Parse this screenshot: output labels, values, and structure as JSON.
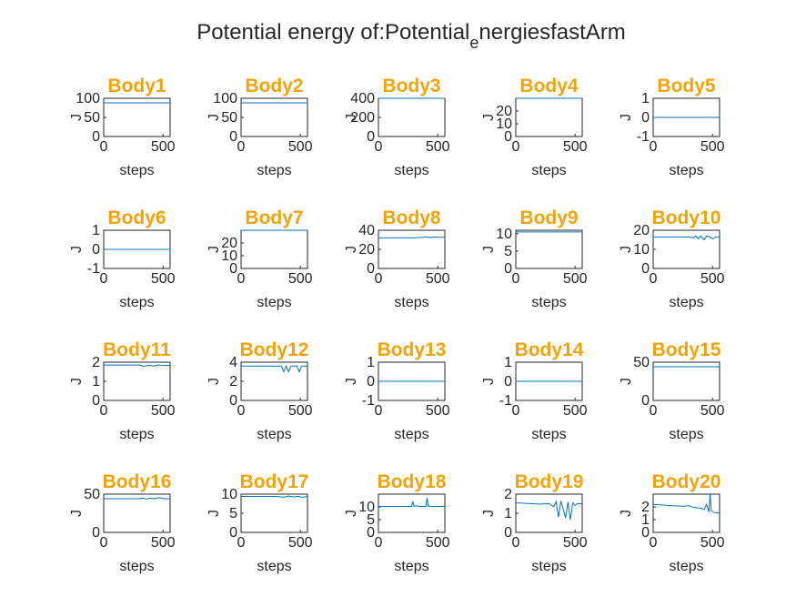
{
  "figure": {
    "title_main": "Potential energy of:Potential",
    "title_sub": "e",
    "title_tail": "nergiesfastArm",
    "title_color": "#f0a30a",
    "line_color": "#0072bd"
  },
  "chart_data": [
    {
      "type": "line",
      "title": "Body1",
      "xlabel": "steps",
      "ylabel": "J",
      "xlim": [
        0,
        560
      ],
      "ylim": [
        0,
        100
      ],
      "yticks": [
        0,
        50,
        100
      ],
      "xticks": [
        0,
        500
      ],
      "x": [
        0,
        560
      ],
      "y": [
        88,
        88
      ]
    },
    {
      "type": "line",
      "title": "Body2",
      "xlabel": "steps",
      "ylabel": "J",
      "xlim": [
        0,
        560
      ],
      "ylim": [
        0,
        100
      ],
      "yticks": [
        0,
        50,
        100
      ],
      "xticks": [
        0,
        500
      ],
      "x": [
        0,
        560
      ],
      "y": [
        88,
        88
      ]
    },
    {
      "type": "line",
      "title": "Body3",
      "xlabel": "steps",
      "ylabel": "J",
      "xlim": [
        0,
        560
      ],
      "ylim": [
        0,
        400
      ],
      "yticks": [
        0,
        200,
        400
      ],
      "xticks": [
        0,
        500
      ],
      "x": [
        0,
        560
      ],
      "y": [
        400,
        400
      ]
    },
    {
      "type": "line",
      "title": "Body4",
      "xlabel": "steps",
      "ylabel": "J",
      "xlim": [
        0,
        560
      ],
      "ylim": [
        0,
        30
      ],
      "yticks": [
        0,
        10,
        20
      ],
      "xticks": [
        0,
        500
      ],
      "x": [
        0,
        560
      ],
      "y": [
        30,
        30
      ]
    },
    {
      "type": "line",
      "title": "Body5",
      "xlabel": "steps",
      "ylabel": "J",
      "xlim": [
        0,
        560
      ],
      "ylim": [
        -1,
        1
      ],
      "yticks": [
        -1,
        0,
        1
      ],
      "xticks": [
        0,
        500
      ],
      "x": [
        0,
        560
      ],
      "y": [
        0,
        0
      ]
    },
    {
      "type": "line",
      "title": "Body6",
      "xlabel": "steps",
      "ylabel": "J",
      "xlim": [
        0,
        560
      ],
      "ylim": [
        -1,
        1
      ],
      "yticks": [
        -1,
        0,
        1
      ],
      "xticks": [
        0,
        500
      ],
      "x": [
        0,
        560
      ],
      "y": [
        0,
        0
      ]
    },
    {
      "type": "line",
      "title": "Body7",
      "xlabel": "steps",
      "ylabel": "J",
      "xlim": [
        0,
        560
      ],
      "ylim": [
        0,
        30
      ],
      "yticks": [
        0,
        10,
        20
      ],
      "xticks": [
        0,
        500
      ],
      "x": [
        0,
        560
      ],
      "y": [
        30,
        30
      ]
    },
    {
      "type": "line",
      "title": "Body8",
      "xlabel": "steps",
      "ylabel": "J",
      "xlim": [
        0,
        560
      ],
      "ylim": [
        0,
        40
      ],
      "yticks": [
        0,
        20,
        40
      ],
      "xticks": [
        0,
        500
      ],
      "x": [
        0,
        300,
        360,
        400,
        440,
        480,
        520,
        560
      ],
      "y": [
        32,
        32,
        32.5,
        33,
        32.5,
        33,
        32.5,
        33
      ]
    },
    {
      "type": "line",
      "title": "Body9",
      "xlabel": "steps",
      "ylabel": "J",
      "xlim": [
        0,
        560
      ],
      "ylim": [
        0,
        11
      ],
      "yticks": [
        0,
        5,
        10
      ],
      "xticks": [
        0,
        500
      ],
      "x": [
        0,
        560
      ],
      "y": [
        10.5,
        10.5
      ]
    },
    {
      "type": "line",
      "title": "Body10",
      "xlabel": "steps",
      "ylabel": "J",
      "xlim": [
        0,
        560
      ],
      "ylim": [
        0,
        20
      ],
      "yticks": [
        0,
        10,
        20
      ],
      "xticks": [
        0,
        500
      ],
      "x": [
        0,
        300,
        340,
        360,
        380,
        400,
        430,
        450,
        480,
        500,
        530,
        560
      ],
      "y": [
        16.5,
        16.5,
        16,
        17,
        15.5,
        17,
        15,
        17,
        16.5,
        15.5,
        16.5,
        16.5
      ]
    },
    {
      "type": "line",
      "title": "Body11",
      "xlabel": "steps",
      "ylabel": "J",
      "xlim": [
        0,
        560
      ],
      "ylim": [
        0,
        2
      ],
      "yticks": [
        0,
        1,
        2
      ],
      "xticks": [
        0,
        500
      ],
      "x": [
        0,
        300,
        340,
        380,
        420,
        460,
        500,
        560
      ],
      "y": [
        1.85,
        1.85,
        1.78,
        1.85,
        1.8,
        1.86,
        1.82,
        1.84
      ]
    },
    {
      "type": "line",
      "title": "Body12",
      "xlabel": "steps",
      "ylabel": "J",
      "xlim": [
        0,
        560
      ],
      "ylim": [
        0,
        4
      ],
      "yticks": [
        0,
        2,
        4
      ],
      "xticks": [
        0,
        500
      ],
      "x": [
        0,
        300,
        340,
        360,
        380,
        400,
        420,
        440,
        470,
        490,
        510,
        530,
        560
      ],
      "y": [
        3.6,
        3.6,
        3.6,
        3.0,
        3.6,
        3.0,
        3.6,
        3.6,
        3.6,
        3.0,
        3.6,
        3.6,
        3.6
      ]
    },
    {
      "type": "line",
      "title": "Body13",
      "xlabel": "steps",
      "ylabel": "J",
      "xlim": [
        0,
        560
      ],
      "ylim": [
        -1,
        1
      ],
      "yticks": [
        -1,
        0,
        1
      ],
      "xticks": [
        0,
        500
      ],
      "x": [
        0,
        560
      ],
      "y": [
        0,
        0
      ]
    },
    {
      "type": "line",
      "title": "Body14",
      "xlabel": "steps",
      "ylabel": "J",
      "xlim": [
        0,
        560
      ],
      "ylim": [
        -1,
        1
      ],
      "yticks": [
        -1,
        0,
        1
      ],
      "xticks": [
        0,
        500
      ],
      "x": [
        0,
        560
      ],
      "y": [
        0,
        0
      ]
    },
    {
      "type": "line",
      "title": "Body15",
      "xlabel": "steps",
      "ylabel": "J",
      "xlim": [
        0,
        560
      ],
      "ylim": [
        0,
        50
      ],
      "yticks": [
        0,
        50
      ],
      "xticks": [
        0,
        500
      ],
      "x": [
        0,
        560
      ],
      "y": [
        44,
        44
      ]
    },
    {
      "type": "line",
      "title": "Body16",
      "xlabel": "steps",
      "ylabel": "J",
      "xlim": [
        0,
        560
      ],
      "ylim": [
        0,
        50
      ],
      "yticks": [
        0,
        50
      ],
      "xticks": [
        0,
        500
      ],
      "x": [
        0,
        300,
        330,
        360,
        400,
        430,
        470,
        510,
        560
      ],
      "y": [
        44,
        44,
        45,
        43.5,
        45,
        44,
        45.5,
        44,
        44
      ]
    },
    {
      "type": "line",
      "title": "Body17",
      "xlabel": "steps",
      "ylabel": "J",
      "xlim": [
        0,
        560
      ],
      "ylim": [
        0,
        10
      ],
      "yticks": [
        0,
        5,
        10
      ],
      "xticks": [
        0,
        500
      ],
      "x": [
        0,
        300,
        360,
        400,
        440,
        480,
        520,
        560
      ],
      "y": [
        9.4,
        9.4,
        9.2,
        9.5,
        9.3,
        9.4,
        9.2,
        9.4
      ]
    },
    {
      "type": "line",
      "title": "Body18",
      "xlabel": "steps",
      "ylabel": "J",
      "xlim": [
        0,
        560
      ],
      "ylim": [
        0,
        15
      ],
      "yticks": [
        0,
        5,
        10
      ],
      "xticks": [
        0,
        500
      ],
      "x": [
        0,
        280,
        290,
        300,
        310,
        330,
        340,
        400,
        410,
        420,
        430,
        440,
        500,
        560
      ],
      "y": [
        10.2,
        10.2,
        12.2,
        10.2,
        10.4,
        10.4,
        10.2,
        10.2,
        13.5,
        10.2,
        10.4,
        10.2,
        10.2,
        10.2
      ]
    },
    {
      "type": "line",
      "title": "Body19",
      "xlabel": "steps",
      "ylabel": "J",
      "xlim": [
        0,
        560
      ],
      "ylim": [
        0,
        2
      ],
      "yticks": [
        0,
        1,
        2
      ],
      "xticks": [
        0,
        500
      ],
      "x": [
        0,
        200,
        280,
        320,
        340,
        360,
        380,
        400,
        420,
        440,
        460,
        480,
        500,
        520,
        560
      ],
      "y": [
        1.55,
        1.48,
        1.5,
        1.35,
        1.6,
        0.8,
        1.65,
        1.2,
        0.75,
        1.6,
        0.65,
        1.55,
        1.4,
        1.5,
        1.5
      ]
    },
    {
      "type": "line",
      "title": "Body20",
      "xlabel": "steps",
      "ylabel": "J",
      "xlim": [
        0,
        560
      ],
      "ylim": [
        0,
        3
      ],
      "yticks": [
        0,
        1,
        2
      ],
      "xticks": [
        0,
        500
      ],
      "x": [
        0,
        150,
        250,
        300,
        330,
        350,
        400,
        430,
        450,
        470,
        480,
        490,
        500,
        520,
        560
      ],
      "y": [
        2.2,
        2.1,
        2.05,
        2.1,
        2.0,
        1.95,
        1.9,
        1.8,
        2.2,
        1.6,
        3.0,
        1.7,
        1.6,
        1.55,
        1.5
      ]
    }
  ]
}
